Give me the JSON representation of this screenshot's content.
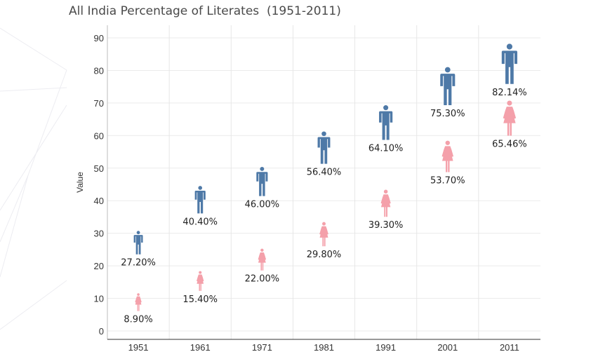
{
  "chart_data": {
    "type": "scatter",
    "title": "All India Percentage of Literates  (1951-2011)",
    "ylabel": "Value",
    "xlabel": "",
    "ylim": [
      0,
      95
    ],
    "yticks": [
      0,
      10,
      20,
      30,
      40,
      50,
      60,
      70,
      80,
      90
    ],
    "categories": [
      "1951",
      "1961",
      "1971",
      "1981",
      "1991",
      "2001",
      "2011"
    ],
    "grid": true,
    "series": [
      {
        "marker": "male-figure-icon",
        "color": "#4e79a7",
        "values": [
          27.2,
          40.4,
          46.0,
          56.4,
          64.1,
          75.3,
          82.14
        ],
        "labels": [
          "27.20%",
          "40.40%",
          "46.00%",
          "56.40%",
          "64.10%",
          "75.30%",
          "82.14%"
        ]
      },
      {
        "marker": "female-figure-icon",
        "color": "#f4a0aa",
        "values": [
          8.9,
          15.4,
          22.0,
          29.8,
          39.3,
          53.7,
          65.46
        ],
        "labels": [
          "8.90%",
          "15.40%",
          "22.00%",
          "29.80%",
          "39.30%",
          "53.70%",
          "65.46%"
        ]
      }
    ]
  }
}
